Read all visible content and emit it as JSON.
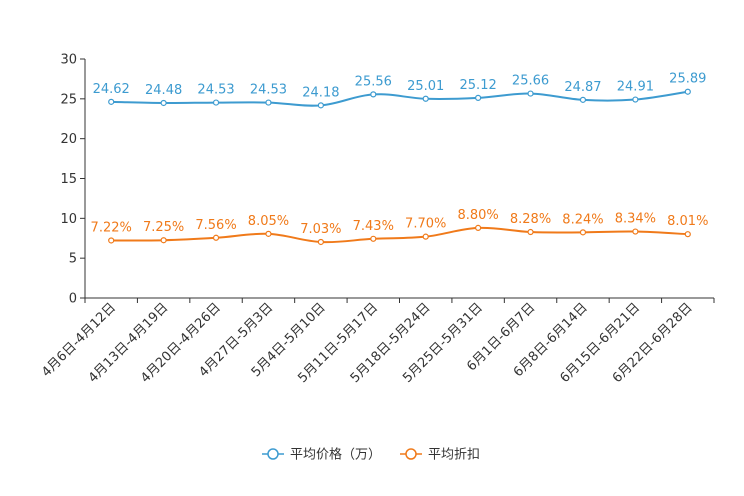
{
  "chart_data": {
    "type": "line",
    "title": "",
    "xlabel": "",
    "ylabel": "",
    "ylim": [
      0,
      30
    ],
    "yticks": [
      0,
      5,
      10,
      15,
      20,
      25,
      30
    ],
    "grid": false,
    "legend_position": "bottom-center",
    "categories": [
      "4月6日-4月12日",
      "4月13日-4月19日",
      "4月20日-4月26日",
      "4月27日-5月3日",
      "5月4日-5月10日",
      "5月11日-5月17日",
      "5月18日-5月24日",
      "5月25日-5月31日",
      "6月1日-6月7日",
      "6月8日-6月14日",
      "6月15日-6月21日",
      "6月22日-6月28日"
    ],
    "series": [
      {
        "name": "平均价格（万）",
        "color": "#3d9bd0",
        "values": [
          24.62,
          24.48,
          24.53,
          24.53,
          24.18,
          25.56,
          25.01,
          25.12,
          25.66,
          24.87,
          24.91,
          25.89
        ],
        "labels": [
          "24.62",
          "24.48",
          "24.53",
          "24.53",
          "24.18",
          "25.56",
          "25.01",
          "25.12",
          "25.66",
          "24.87",
          "24.91",
          "25.89"
        ]
      },
      {
        "name": "平均折扣",
        "color": "#f07a1a",
        "values": [
          7.22,
          7.25,
          7.56,
          8.05,
          7.03,
          7.43,
          7.7,
          8.8,
          8.28,
          8.24,
          8.34,
          8.01
        ],
        "labels": [
          "7.22%",
          "7.25%",
          "7.56%",
          "8.05%",
          "7.03%",
          "7.43%",
          "7.70%",
          "8.80%",
          "8.28%",
          "8.24%",
          "8.34%",
          "8.01%"
        ]
      }
    ]
  }
}
